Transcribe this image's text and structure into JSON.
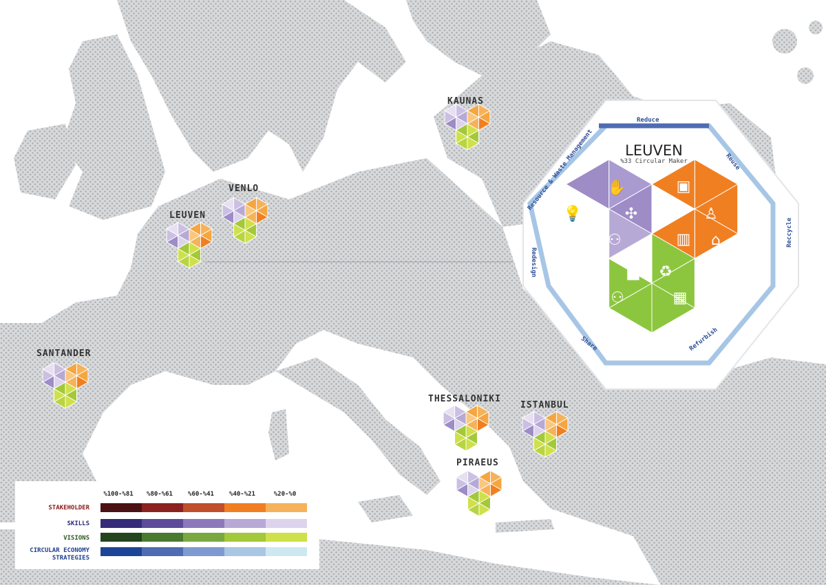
{
  "cities": [
    {
      "name": "KAUNAS"
    },
    {
      "name": "VENLO"
    },
    {
      "name": "LEUVEN"
    },
    {
      "name": "SANTANDER"
    },
    {
      "name": "THESSALONIKI"
    },
    {
      "name": "ISTANBUL"
    },
    {
      "name": "PIRAEUS"
    }
  ],
  "detail": {
    "city": "LEUVEN",
    "subtitle": "%33 Circular Maker",
    "strategies": [
      "Reduce",
      "Reuse",
      "Reccycle",
      "Refurbish",
      "Share",
      "Redesign",
      "Resource & Waste Management"
    ],
    "icons": {
      "visions": [
        "lightbulb-icon",
        "brain-icon"
      ],
      "skills": [
        "tools-hand-icon",
        "network-icon",
        "people-icon"
      ],
      "stakeholder": [
        "briefcase-icon",
        "money-icon",
        "person-icon",
        "book-icon",
        "institution-icon"
      ],
      "strategies": [
        "factory-icon",
        "recycle-leaf-icon",
        "community-icon",
        "city-icon"
      ]
    }
  },
  "legend": {
    "ranges": [
      "%100-%81",
      "%80-%61",
      "%60-%41",
      "%40-%21",
      "%20-%0"
    ],
    "rows": [
      {
        "label": "STAKEHOLDER",
        "label_color": "#8b1a1a",
        "colors": [
          "#4a1214",
          "#8b2220",
          "#c04f2b",
          "#f07f22",
          "#f6b25a"
        ]
      },
      {
        "label": "SKILLS",
        "label_color": "#2b2a78",
        "colors": [
          "#352b78",
          "#5c4a9a",
          "#8b79bc",
          "#b7a9d6",
          "#dcd4ec"
        ]
      },
      {
        "label": "VISIONS",
        "label_color": "#2a5a1e",
        "colors": [
          "#23441d",
          "#4a7a2f",
          "#7aa840",
          "#a3c83a",
          "#cfe04a"
        ]
      },
      {
        "label": "CIRCULAR ECONOMY STRATEGIES",
        "label_color": "#1f3f8f",
        "colors": [
          "#1d4597",
          "#4f6cb3",
          "#7e9ad0",
          "#a9c6e2",
          "#cde8f0"
        ]
      }
    ]
  }
}
